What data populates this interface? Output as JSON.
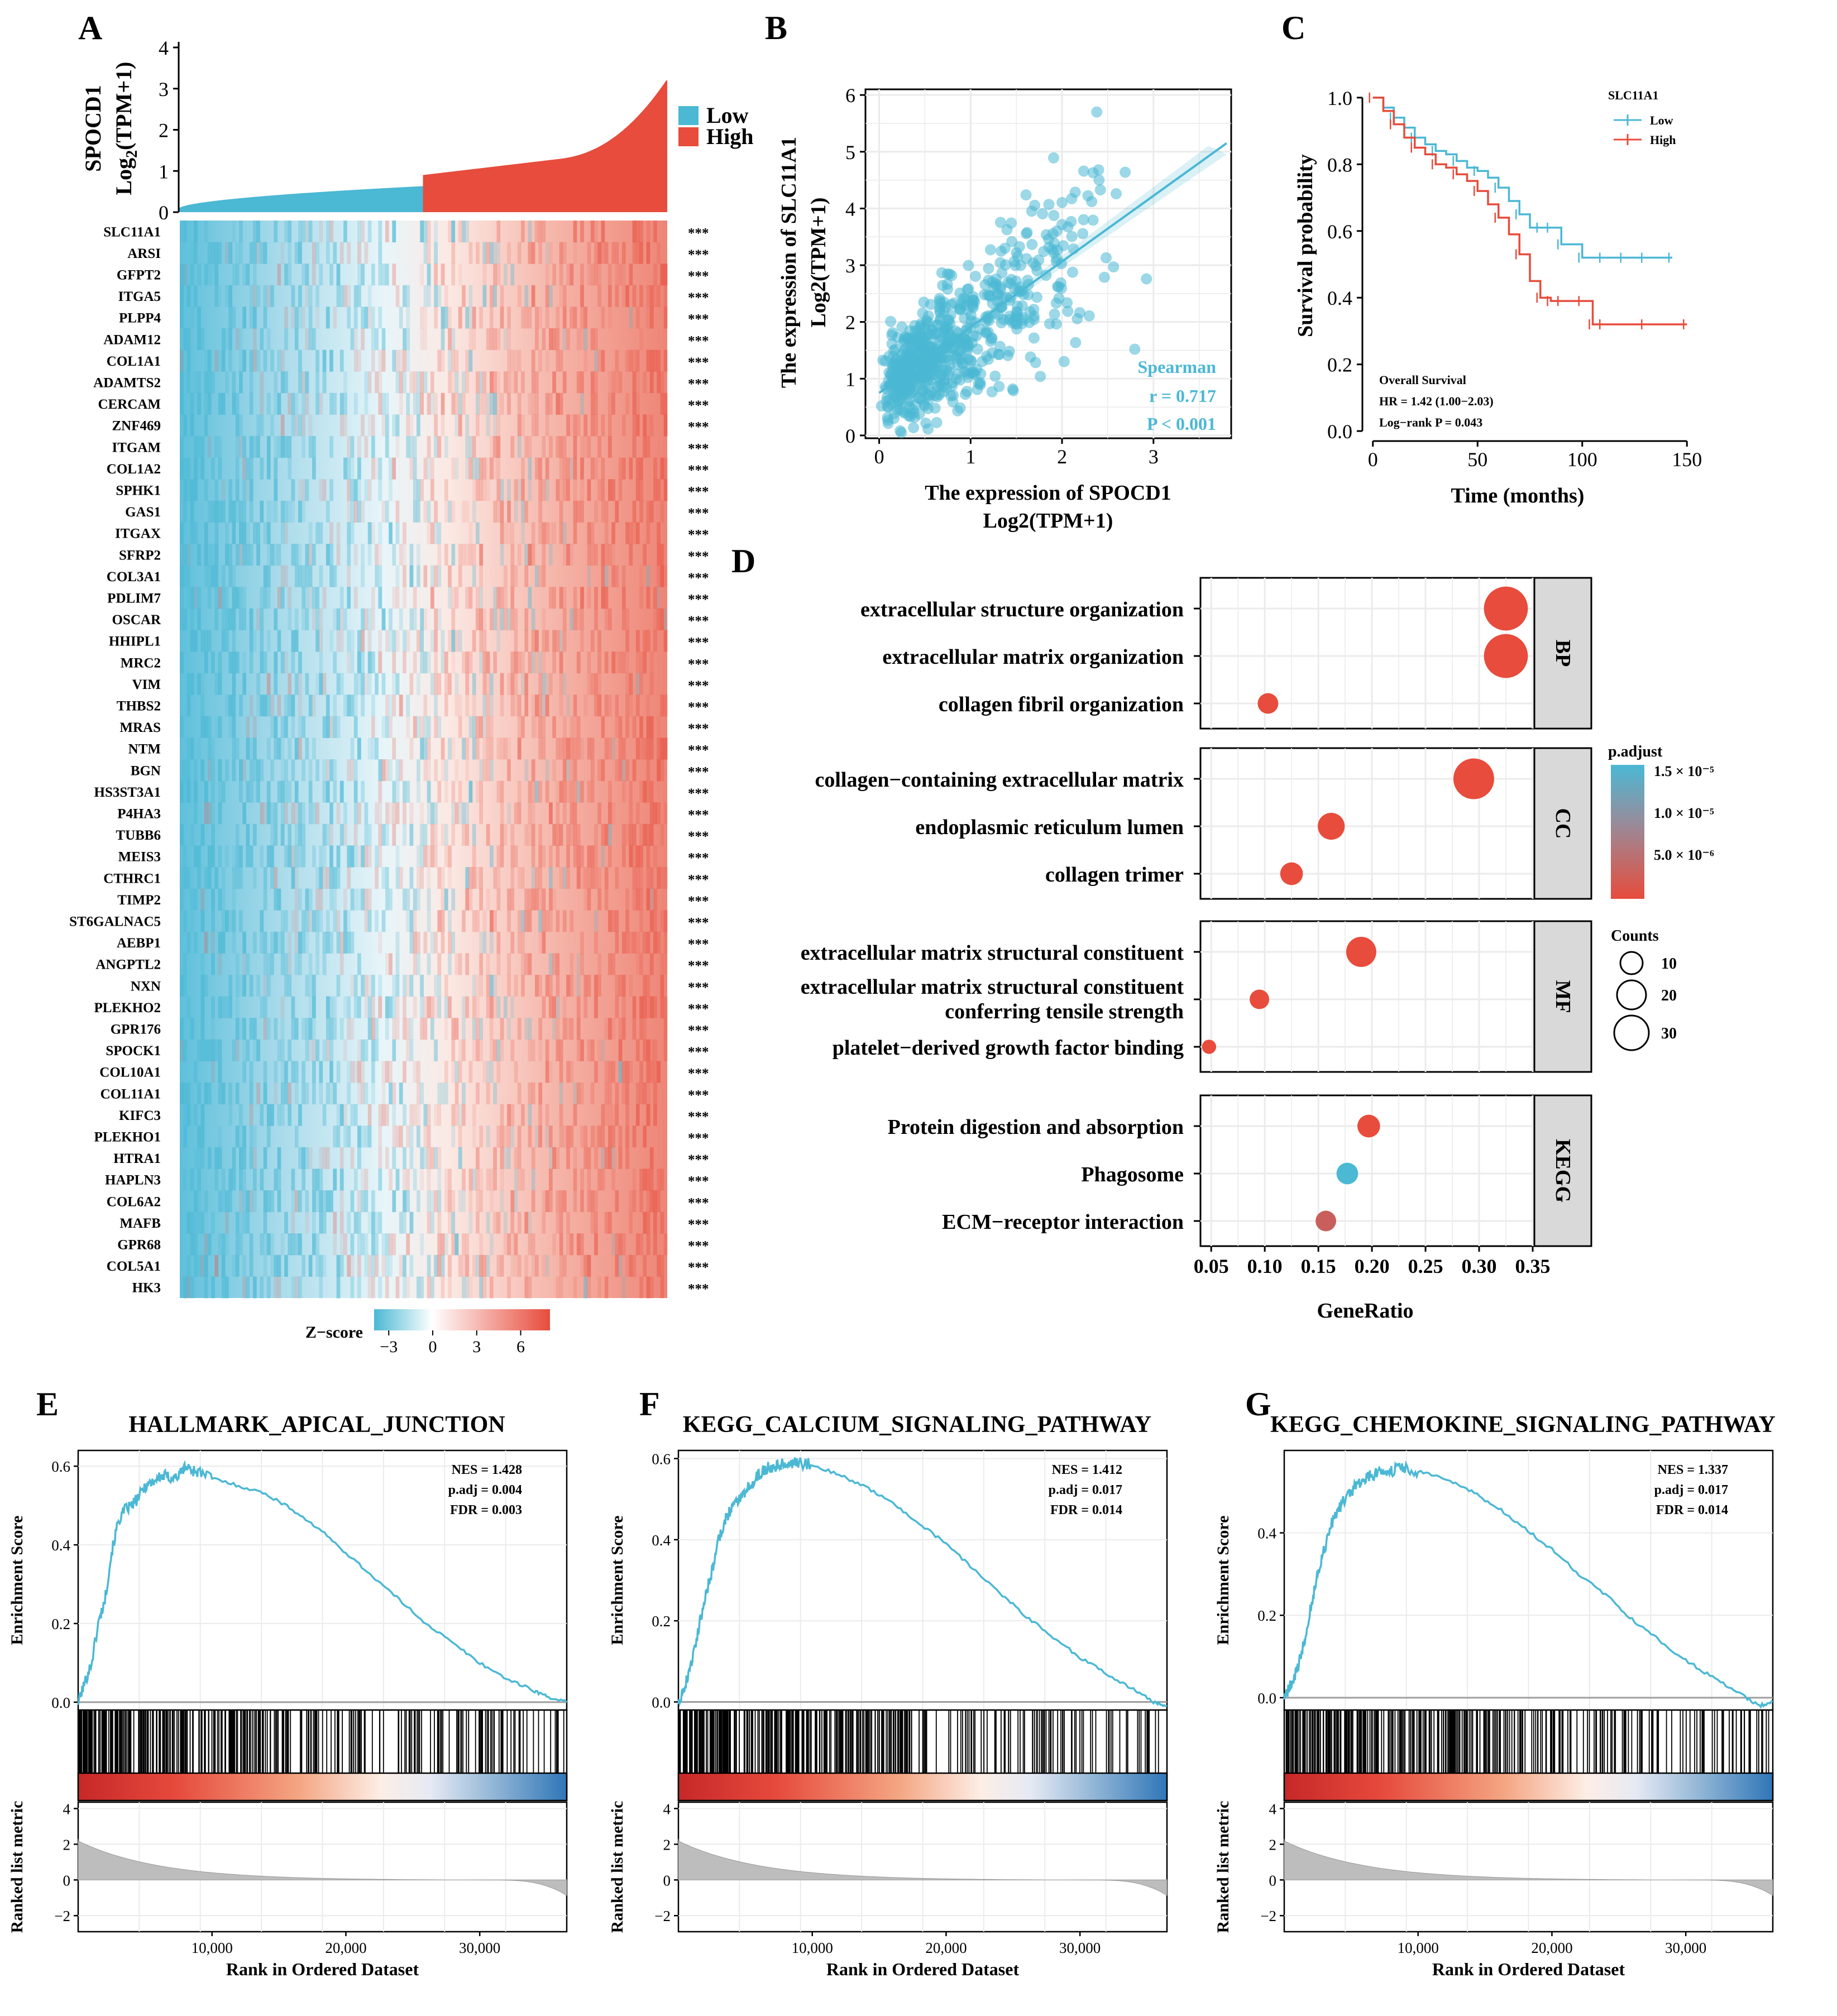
{
  "colors": {
    "low": "#4bb8d4",
    "high": "#e74c3c",
    "blue": "#2f76b8",
    "red": "#c62828",
    "gray_panel": "#d9d9d9",
    "grid": "#ebebeb",
    "fill_gray": "#bdbdbd"
  },
  "panels": {
    "A": {
      "letter": "A"
    },
    "B": {
      "letter": "B"
    },
    "C": {
      "letter": "C"
    },
    "D": {
      "letter": "D"
    },
    "E": {
      "letter": "E"
    },
    "F": {
      "letter": "F"
    },
    "G": {
      "letter": "G"
    }
  },
  "chart_data": [
    {
      "id": "A",
      "type": "heatmap",
      "bar": {
        "ylabel_line1": "SPOCD1",
        "ylabel_line2_main": "Log",
        "ylabel_line2_sub": "2",
        "ylabel_line2_rest": "(TPM+1)",
        "ylim": [
          0,
          4
        ],
        "yticks": [
          "0",
          "1",
          "2",
          "3",
          "4"
        ],
        "low_fraction": 0.5,
        "legend": [
          "Low",
          "High"
        ]
      },
      "genes": [
        "SLC11A1",
        "ARSI",
        "GFPT2",
        "ITGA5",
        "PLPP4",
        "ADAM12",
        "COL1A1",
        "ADAMTS2",
        "CERCAM",
        "ZNF469",
        "ITGAM",
        "COL1A2",
        "SPHK1",
        "GAS1",
        "ITGAX",
        "SFRP2",
        "COL3A1",
        "PDLIM7",
        "OSCAR",
        "HHIPL1",
        "MRC2",
        "VIM",
        "THBS2",
        "MRAS",
        "NTM",
        "BGN",
        "HS3ST3A1",
        "P4HA3",
        "TUBB6",
        "MEIS3",
        "CTHRC1",
        "TIMP2",
        "ST6GALNAC5",
        "AEBP1",
        "ANGPTL2",
        "NXN",
        "PLEKHO2",
        "GPR176",
        "SPOCK1",
        "COL10A1",
        "COL11A1",
        "KIFC3",
        "PLEKHO1",
        "HTRA1",
        "HAPLN3",
        "COL6A2",
        "MAFB",
        "GPR68",
        "COL5A1",
        "HK3"
      ],
      "significance": "***",
      "colorbar": {
        "label": "Z−score",
        "ticks": [
          "−3",
          "0",
          "3",
          "6"
        ],
        "range": [
          -4,
          8
        ]
      }
    },
    {
      "id": "B",
      "type": "scatter",
      "xlabel_line1": "The expression of SPOCD1",
      "xlabel_line2": "Log2(TPM+1)",
      "ylabel_line1": "The expression of  SLC11A1",
      "ylabel_line2": "Log2(TPM+1)",
      "xlim": [
        -0.15,
        3.85
      ],
      "ylim": [
        -0.05,
        6.1
      ],
      "xticks": [
        0,
        1,
        2,
        3
      ],
      "yticks": [
        0,
        1,
        2,
        3,
        4,
        5,
        6
      ],
      "fit": {
        "x0": 0.0,
        "y0": 0.75,
        "x1": 3.8,
        "y1": 5.15
      },
      "annotation": [
        "Spearman",
        "r = 0.717",
        "P < 0.001"
      ]
    },
    {
      "id": "C",
      "type": "line",
      "title_legend": "SLC11A1",
      "legend": [
        "Low",
        "High"
      ],
      "xlabel": "Time (months)",
      "ylabel": "Survival probability",
      "xlim": [
        -5,
        155
      ],
      "ylim": [
        -0.03,
        1.05
      ],
      "xticks": [
        0,
        50,
        100,
        150
      ],
      "yticks": [
        "0.0",
        "0.2",
        "0.4",
        "0.6",
        "0.8",
        "1.0"
      ],
      "series": [
        {
          "name": "Low",
          "x": [
            0,
            5,
            10,
            15,
            20,
            25,
            30,
            35,
            40,
            45,
            50,
            55,
            60,
            65,
            70,
            75,
            80,
            85,
            90,
            100,
            110,
            120,
            130,
            143
          ],
          "y": [
            1.0,
            0.97,
            0.94,
            0.91,
            0.88,
            0.86,
            0.84,
            0.83,
            0.81,
            0.79,
            0.78,
            0.76,
            0.73,
            0.69,
            0.65,
            0.61,
            0.61,
            0.61,
            0.56,
            0.52,
            0.52,
            0.52,
            0.52,
            0.52
          ]
        },
        {
          "name": "High",
          "x": [
            0,
            5,
            10,
            15,
            20,
            25,
            30,
            35,
            40,
            45,
            50,
            55,
            60,
            65,
            70,
            75,
            80,
            85,
            90,
            100,
            105,
            110,
            130,
            150
          ],
          "y": [
            1.0,
            0.96,
            0.92,
            0.88,
            0.85,
            0.83,
            0.8,
            0.79,
            0.77,
            0.75,
            0.72,
            0.68,
            0.64,
            0.59,
            0.53,
            0.45,
            0.4,
            0.39,
            0.39,
            0.39,
            0.32,
            0.32,
            0.32,
            0.32
          ]
        }
      ],
      "annotation": [
        "Overall Survival",
        "HR = 1.42 (1.00−2.03)",
        "Log−rank P = 0.043"
      ]
    },
    {
      "id": "D",
      "type": "scatter",
      "xlabel": "GeneRatio",
      "xlim": [
        0.04,
        0.35
      ],
      "xticks": [
        "0.05",
        "0.10",
        "0.15",
        "0.20",
        "0.25",
        "0.30",
        "0.35"
      ],
      "facets": [
        {
          "name": "BP",
          "terms": [
            {
              "label": [
                "extracellular structure organization"
              ],
              "ratio": 0.325,
              "count": 33,
              "p": 0.0
            },
            {
              "label": [
                "extracellular matrix organization"
              ],
              "ratio": 0.325,
              "count": 33,
              "p": 0.0
            },
            {
              "label": [
                "collagen fibril organization"
              ],
              "ratio": 0.103,
              "count": 11,
              "p": 0.0
            }
          ]
        },
        {
          "name": "CC",
          "terms": [
            {
              "label": [
                "collagen−containing extracellular matrix"
              ],
              "ratio": 0.295,
              "count": 30,
              "p": 0.0
            },
            {
              "label": [
                "endoplasmic reticulum lumen"
              ],
              "ratio": 0.162,
              "count": 17,
              "p": 0.0
            },
            {
              "label": [
                "collagen trimer"
              ],
              "ratio": 0.125,
              "count": 13,
              "p": 0.0
            }
          ]
        },
        {
          "name": "MF",
          "terms": [
            {
              "label": [
                "extracellular matrix structural constituent"
              ],
              "ratio": 0.19,
              "count": 20,
              "p": 0.0
            },
            {
              "label": [
                "extracellular matrix structural constituent",
                "conferring tensile strength"
              ],
              "ratio": 0.095,
              "count": 10,
              "p": 0.0
            },
            {
              "label": [
                "platelet−derived growth factor binding"
              ],
              "ratio": 0.048,
              "count": 5,
              "p": 0.0
            }
          ]
        },
        {
          "name": "KEGG",
          "terms": [
            {
              "label": [
                "Protein digestion and absorption"
              ],
              "ratio": 0.197,
              "count": 13,
              "p": 0.0
            },
            {
              "label": [
                "Phagosome"
              ],
              "ratio": 0.177,
              "count": 12,
              "p": 1.5e-05
            },
            {
              "label": [
                "ECM−receptor interaction"
              ],
              "ratio": 0.157,
              "count": 11,
              "p": 5e-06
            }
          ]
        }
      ],
      "legend_color": {
        "title": "p.adjust",
        "ticks": [
          "1.5 × 10⁻⁵",
          "1.0 × 10⁻⁵",
          "5.0 × 10⁻⁶"
        ]
      },
      "legend_size": {
        "title": "Counts",
        "values": [
          "10",
          "20",
          "30"
        ]
      }
    },
    {
      "id": "E",
      "type": "line",
      "title": "HALLMARK_APICAL_JUNCTION",
      "stats": [
        "NES = 1.428",
        "p.adj = 0.004",
        "FDR = 0.003"
      ],
      "ylim": [
        -0.02,
        0.64
      ],
      "yticks": [
        "0.0",
        "0.2",
        "0.4",
        "0.6"
      ],
      "es_x": [
        0,
        500,
        1000,
        1500,
        2000,
        2500,
        3000,
        3500,
        4000,
        4500,
        5000,
        5500,
        6000,
        6500,
        7000,
        7500,
        8000,
        8500,
        9000,
        10000,
        12000,
        14000,
        16000,
        18000,
        20000,
        22000,
        24000,
        26000,
        28000,
        30000,
        32000,
        34000,
        35000,
        36500
      ],
      "es_y": [
        0.0,
        0.05,
        0.1,
        0.2,
        0.26,
        0.38,
        0.46,
        0.49,
        0.5,
        0.52,
        0.55,
        0.56,
        0.57,
        0.575,
        0.57,
        0.575,
        0.6,
        0.59,
        0.585,
        0.57,
        0.55,
        0.53,
        0.49,
        0.44,
        0.38,
        0.32,
        0.26,
        0.2,
        0.15,
        0.1,
        0.06,
        0.03,
        0.015,
        0.0
      ],
      "xlabel": "Rank in Ordered Dataset",
      "xticks": [
        "10,000",
        "20,000",
        "30,000"
      ],
      "ylabel_top": "Enrichment Score",
      "ylabel_bottom": "Ranked list metric",
      "metric_ticks": [
        "4",
        "2",
        "0",
        "−2"
      ]
    },
    {
      "id": "F",
      "type": "line",
      "title": "KEGG_CALCIUM_SIGNALING_PATHWAY",
      "stats": [
        "NES = 1.412",
        "p.adj = 0.017",
        "FDR = 0.014"
      ],
      "ylim": [
        -0.02,
        0.62
      ],
      "yticks": [
        "0.0",
        "0.2",
        "0.4",
        "0.6"
      ],
      "es_x": [
        0,
        500,
        1000,
        1500,
        2000,
        2500,
        3000,
        3500,
        4000,
        4500,
        5000,
        5500,
        6000,
        6500,
        7000,
        7500,
        8000,
        8500,
        9000,
        10000,
        12000,
        14000,
        16000,
        18000,
        20000,
        22000,
        24000,
        26000,
        28000,
        30000,
        32000,
        34000,
        35500,
        36500
      ],
      "es_y": [
        0.0,
        0.04,
        0.1,
        0.18,
        0.26,
        0.32,
        0.4,
        0.45,
        0.48,
        0.5,
        0.52,
        0.54,
        0.56,
        0.575,
        0.58,
        0.585,
        0.59,
        0.59,
        0.59,
        0.585,
        0.56,
        0.53,
        0.49,
        0.44,
        0.39,
        0.33,
        0.27,
        0.21,
        0.16,
        0.11,
        0.07,
        0.03,
        0.0,
        -0.01
      ],
      "xlabel": "Rank in Ordered Dataset",
      "xticks": [
        "10,000",
        "20,000",
        "30,000"
      ],
      "ylabel_top": "Enrichment Score",
      "ylabel_bottom": "Ranked list metric",
      "metric_ticks": [
        "4",
        "2",
        "0",
        "−2"
      ]
    },
    {
      "id": "G",
      "type": "line",
      "title": "KEGG_CHEMOKINE_SIGNALING_PATHWAY",
      "stats": [
        "NES = 1.337",
        "p.adj = 0.017",
        "FDR = 0.014"
      ],
      "ylim": [
        -0.03,
        0.6
      ],
      "yticks": [
        "0.0",
        "0.2",
        "0.4"
      ],
      "es_x": [
        0,
        500,
        1000,
        1500,
        2000,
        2500,
        3000,
        3500,
        4000,
        4500,
        5000,
        5500,
        6000,
        6500,
        7000,
        7500,
        8000,
        8500,
        9000,
        10000,
        12000,
        14000,
        16000,
        18000,
        20000,
        22000,
        24000,
        26000,
        28000,
        30000,
        32000,
        34000,
        35500,
        36500
      ],
      "es_y": [
        0.0,
        0.03,
        0.07,
        0.14,
        0.22,
        0.3,
        0.36,
        0.42,
        0.45,
        0.48,
        0.5,
        0.52,
        0.53,
        0.54,
        0.545,
        0.55,
        0.55,
        0.555,
        0.555,
        0.55,
        0.53,
        0.5,
        0.46,
        0.41,
        0.36,
        0.3,
        0.25,
        0.19,
        0.14,
        0.09,
        0.05,
        0.01,
        -0.02,
        -0.01
      ],
      "xlabel": "Rank in Ordered Dataset",
      "xticks": [
        "10,000",
        "20,000",
        "30,000"
      ],
      "ylabel_top": "Enrichment Score",
      "ylabel_bottom": "Ranked list metric",
      "metric_ticks": [
        "4",
        "2",
        "0",
        "−2"
      ]
    }
  ]
}
